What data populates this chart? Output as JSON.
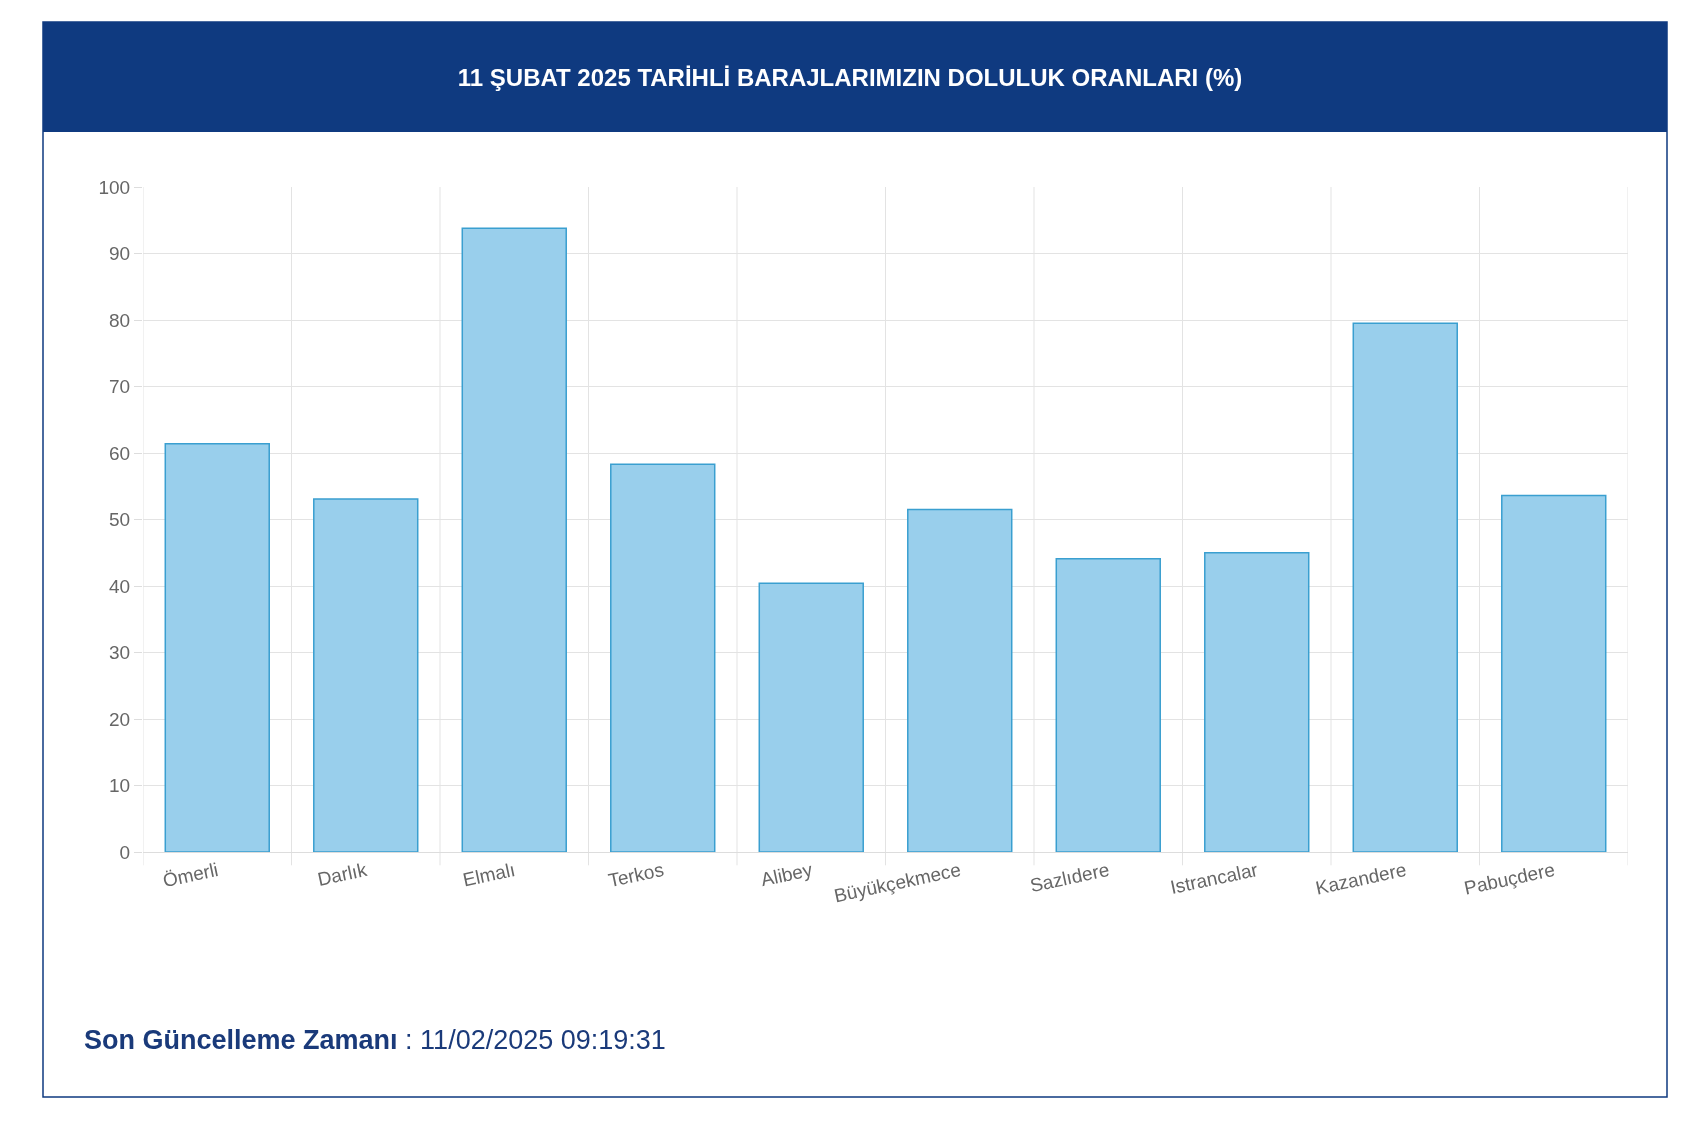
{
  "chart_data": {
    "type": "bar",
    "title": "11 ŞUBAT 2025 TARİHLİ BARAJLARIMIZIN DOLULUK ORANLARI (%)",
    "categories": [
      "Ömerli",
      "Darlık",
      "Elmalı",
      "Terkos",
      "Alibey",
      "Büyükçekmece",
      "Sazlıdere",
      "Istrancalar",
      "Kazandere",
      "Pabuçdere"
    ],
    "values": [
      61.4,
      53.1,
      93.8,
      58.3,
      40.4,
      51.5,
      44.1,
      45.0,
      79.5,
      53.6
    ],
    "color": "#99cfec",
    "ylim": [
      0,
      100
    ],
    "yticks": [
      0,
      10,
      20,
      30,
      40,
      50,
      60,
      70,
      80,
      90,
      100
    ],
    "grid": true,
    "annotations": [
      "Son Güncelleme Zamanı : 11/02/2025 09:19:31"
    ]
  }
}
